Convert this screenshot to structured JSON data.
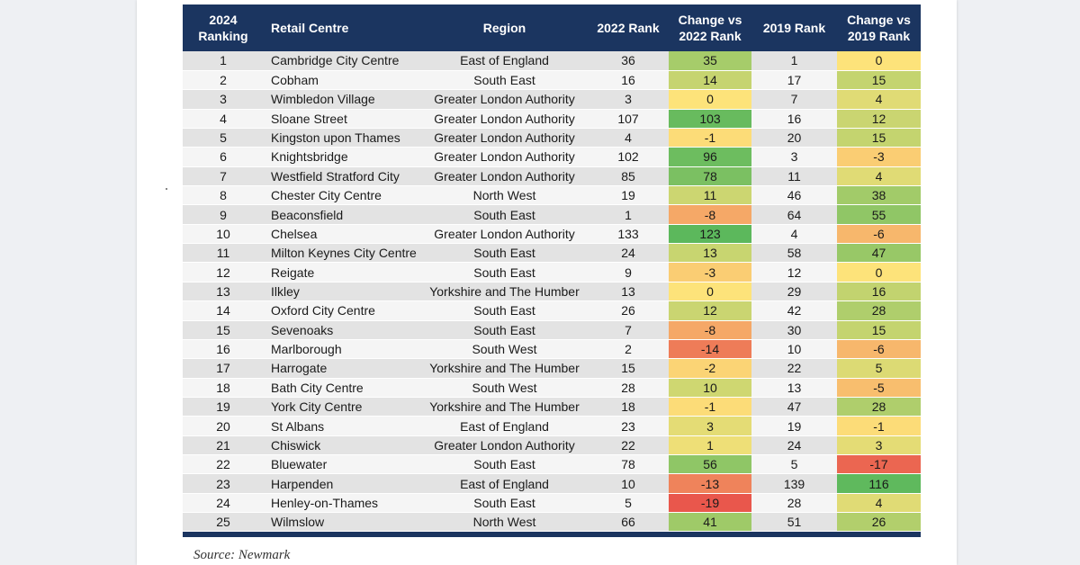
{
  "table": {
    "headers": {
      "ranking": "2024 Ranking",
      "centre": "Retail Centre",
      "region": "Region",
      "rank2022": "2022 Rank",
      "change2022": "Change vs 2022 Rank",
      "rank2019": "2019 Rank",
      "change2019": "Change vs 2019 Rank"
    },
    "rows": [
      {
        "rank": "1",
        "centre": "Cambridge City Centre",
        "region": "East of England",
        "r22": "36",
        "c22": "35",
        "r19": "1",
        "c19": "0"
      },
      {
        "rank": "2",
        "centre": "Cobham",
        "region": "South East",
        "r22": "16",
        "c22": "14",
        "r19": "17",
        "c19": "15"
      },
      {
        "rank": "3",
        "centre": "Wimbledon Village",
        "region": "Greater London Authority",
        "r22": "3",
        "c22": "0",
        "r19": "7",
        "c19": "4"
      },
      {
        "rank": "4",
        "centre": "Sloane Street",
        "region": "Greater London Authority",
        "r22": "107",
        "c22": "103",
        "r19": "16",
        "c19": "12"
      },
      {
        "rank": "5",
        "centre": "Kingston upon Thames",
        "region": "Greater London Authority",
        "r22": "4",
        "c22": "-1",
        "r19": "20",
        "c19": "15"
      },
      {
        "rank": "6",
        "centre": "Knightsbridge",
        "region": "Greater London Authority",
        "r22": "102",
        "c22": "96",
        "r19": "3",
        "c19": "-3"
      },
      {
        "rank": "7",
        "centre": "Westfield Stratford City",
        "region": "Greater London Authority",
        "r22": "85",
        "c22": "78",
        "r19": "11",
        "c19": "4"
      },
      {
        "rank": "8",
        "centre": "Chester City Centre",
        "region": "North West",
        "r22": "19",
        "c22": "11",
        "r19": "46",
        "c19": "38"
      },
      {
        "rank": "9",
        "centre": "Beaconsfield",
        "region": "South East",
        "r22": "1",
        "c22": "-8",
        "r19": "64",
        "c19": "55"
      },
      {
        "rank": "10",
        "centre": "Chelsea",
        "region": "Greater London Authority",
        "r22": "133",
        "c22": "123",
        "r19": "4",
        "c19": "-6"
      },
      {
        "rank": "11",
        "centre": "Milton Keynes City Centre",
        "region": "South East",
        "r22": "24",
        "c22": "13",
        "r19": "58",
        "c19": "47"
      },
      {
        "rank": "12",
        "centre": "Reigate",
        "region": "South East",
        "r22": "9",
        "c22": "-3",
        "r19": "12",
        "c19": "0"
      },
      {
        "rank": "13",
        "centre": "Ilkley",
        "region": "Yorkshire and The Humber",
        "r22": "13",
        "c22": "0",
        "r19": "29",
        "c19": "16"
      },
      {
        "rank": "14",
        "centre": "Oxford City Centre",
        "region": "South East",
        "r22": "26",
        "c22": "12",
        "r19": "42",
        "c19": "28"
      },
      {
        "rank": "15",
        "centre": "Sevenoaks",
        "region": "South East",
        "r22": "7",
        "c22": "-8",
        "r19": "30",
        "c19": "15"
      },
      {
        "rank": "16",
        "centre": "Marlborough",
        "region": "South West",
        "r22": "2",
        "c22": "-14",
        "r19": "10",
        "c19": "-6"
      },
      {
        "rank": "17",
        "centre": "Harrogate",
        "region": "Yorkshire and The Humber",
        "r22": "15",
        "c22": "-2",
        "r19": "22",
        "c19": "5"
      },
      {
        "rank": "18",
        "centre": "Bath City Centre",
        "region": "South West",
        "r22": "28",
        "c22": "10",
        "r19": "13",
        "c19": "-5"
      },
      {
        "rank": "19",
        "centre": "York City Centre",
        "region": "Yorkshire and The Humber",
        "r22": "18",
        "c22": "-1",
        "r19": "47",
        "c19": "28"
      },
      {
        "rank": "20",
        "centre": "St Albans",
        "region": "East of England",
        "r22": "23",
        "c22": "3",
        "r19": "19",
        "c19": "-1"
      },
      {
        "rank": "21",
        "centre": "Chiswick",
        "region": "Greater London Authority",
        "r22": "22",
        "c22": "1",
        "r19": "24",
        "c19": "3"
      },
      {
        "rank": "22",
        "centre": "Bluewater",
        "region": "South East",
        "r22": "78",
        "c22": "56",
        "r19": "5",
        "c19": "-17"
      },
      {
        "rank": "23",
        "centre": "Harpenden",
        "region": "East of England",
        "r22": "10",
        "c22": "-13",
        "r19": "139",
        "c19": "116"
      },
      {
        "rank": "24",
        "centre": "Henley-on-Thames",
        "region": "South East",
        "r22": "5",
        "c22": "-19",
        "r19": "28",
        "c19": "4"
      },
      {
        "rank": "25",
        "centre": "Wilmslow",
        "region": "North West",
        "r22": "66",
        "c22": "41",
        "r19": "51",
        "c19": "26"
      }
    ]
  },
  "source": "Source: Newmark"
}
